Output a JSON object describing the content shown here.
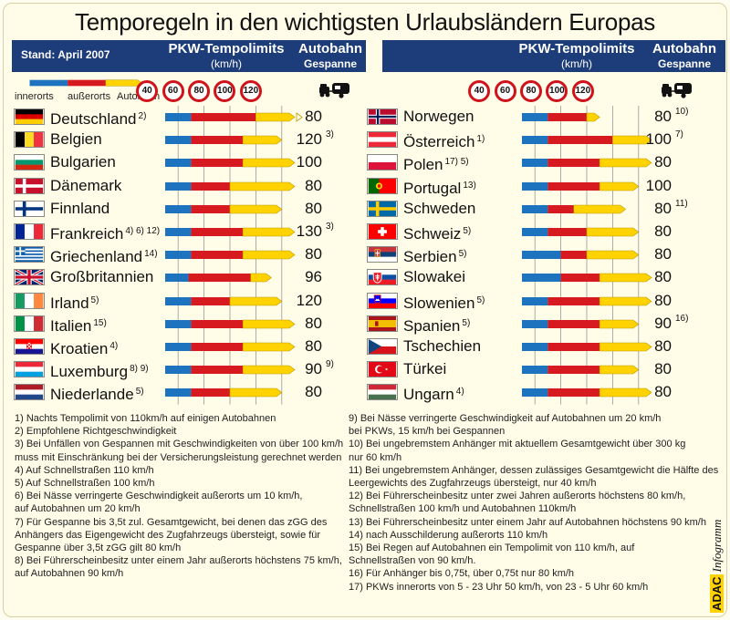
{
  "title": "Temporegeln in den wichtigsten Urlaubsländern Europas",
  "header": {
    "stand": "Stand: April 2007",
    "pkw_title": "PKW-Tempolimits",
    "pkw_unit": "(km/h)",
    "autobahn_title": "Autobahn",
    "autobahn_sub": "Gespanne"
  },
  "legend": {
    "innerorts": "innerorts",
    "ausserorts": "außerorts",
    "autobahn": "Autobahn"
  },
  "speed_ticks": [
    "40",
    "60",
    "80",
    "100",
    "120"
  ],
  "colors": {
    "innerorts": "#1e73be",
    "ausserorts": "#d71920",
    "autobahn": "#ffd200",
    "header_bg": "#1c3c7a"
  },
  "chart_data": {
    "type": "bar",
    "title": "Temporegeln in den wichtigsten Urlaubsländern Europas",
    "xlabel": "PKW-Tempolimits (km/h)",
    "xlim": [
      30,
      130
    ],
    "series": [
      {
        "name": "innerorts"
      },
      {
        "name": "außerorts"
      },
      {
        "name": "Autobahn"
      }
    ],
    "countries": [
      {
        "name": "Deutschland",
        "fn": "2)",
        "innerorts": 50,
        "ausserorts": 100,
        "autobahn": 130,
        "autobahn_open": true,
        "gespanne": "80",
        "gfn": ""
      },
      {
        "name": "Belgien",
        "fn": "",
        "innerorts": 50,
        "ausserorts": 90,
        "autobahn": 120,
        "autobahn_open": false,
        "gespanne": "120",
        "gfn": "3)"
      },
      {
        "name": "Bulgarien",
        "fn": "",
        "innerorts": 50,
        "ausserorts": 90,
        "autobahn": 130,
        "autobahn_open": false,
        "gespanne": "100",
        "gfn": ""
      },
      {
        "name": "Dänemark",
        "fn": "",
        "innerorts": 50,
        "ausserorts": 80,
        "autobahn": 130,
        "autobahn_open": false,
        "gespanne": "80",
        "gfn": ""
      },
      {
        "name": "Finnland",
        "fn": "",
        "innerorts": 50,
        "ausserorts": 80,
        "autobahn": 120,
        "autobahn_open": false,
        "gespanne": "80",
        "gfn": ""
      },
      {
        "name": "Frankreich",
        "fn": "4) 6) 12)",
        "innerorts": 50,
        "ausserorts": 90,
        "autobahn": 130,
        "autobahn_open": false,
        "gespanne": "130",
        "gfn": "3)"
      },
      {
        "name": "Griechenland",
        "fn": "14)",
        "innerorts": 50,
        "ausserorts": 90,
        "autobahn": 130,
        "autobahn_open": false,
        "gespanne": "80",
        "gfn": ""
      },
      {
        "name": "Großbritannien",
        "fn": "",
        "innerorts": 48,
        "ausserorts": 96,
        "autobahn": 112,
        "autobahn_open": false,
        "gespanne": "96",
        "gfn": ""
      },
      {
        "name": "Irland",
        "fn": "5)",
        "innerorts": 50,
        "ausserorts": 80,
        "autobahn": 120,
        "autobahn_open": false,
        "gespanne": "120",
        "gfn": ""
      },
      {
        "name": "Italien",
        "fn": "15)",
        "innerorts": 50,
        "ausserorts": 90,
        "autobahn": 130,
        "autobahn_open": false,
        "gespanne": "80",
        "gfn": ""
      },
      {
        "name": "Kroatien",
        "fn": "4)",
        "innerorts": 50,
        "ausserorts": 90,
        "autobahn": 130,
        "autobahn_open": false,
        "gespanne": "80",
        "gfn": ""
      },
      {
        "name": "Luxemburg",
        "fn": "8) 9)",
        "innerorts": 50,
        "ausserorts": 90,
        "autobahn": 130,
        "autobahn_open": false,
        "gespanne": "90",
        "gfn": "9)"
      },
      {
        "name": "Niederlande",
        "fn": "5)",
        "innerorts": 50,
        "ausserorts": 80,
        "autobahn": 120,
        "autobahn_open": false,
        "gespanne": "80",
        "gfn": ""
      },
      {
        "name": "Norwegen",
        "fn": "",
        "innerorts": 50,
        "ausserorts": 80,
        "autobahn": 90,
        "autobahn_open": false,
        "gespanne": "80",
        "gfn": "10)"
      },
      {
        "name": "Österreich",
        "fn": "1)",
        "innerorts": 50,
        "ausserorts": 100,
        "autobahn": 130,
        "autobahn_open": false,
        "gespanne": "100",
        "gfn": "7)"
      },
      {
        "name": "Polen",
        "fn": "17) 5)",
        "innerorts": 50,
        "ausserorts": 90,
        "autobahn": 130,
        "autobahn_open": false,
        "gespanne": "80",
        "gfn": ""
      },
      {
        "name": "Portugal",
        "fn": "13)",
        "innerorts": 50,
        "ausserorts": 90,
        "autobahn": 120,
        "autobahn_open": false,
        "gespanne": "100",
        "gfn": ""
      },
      {
        "name": "Schweden",
        "fn": "",
        "innerorts": 50,
        "ausserorts": 70,
        "autobahn": 110,
        "autobahn_open": false,
        "gespanne": "80",
        "gfn": "11)"
      },
      {
        "name": "Schweiz",
        "fn": "5)",
        "innerorts": 50,
        "ausserorts": 80,
        "autobahn": 120,
        "autobahn_open": false,
        "gespanne": "80",
        "gfn": ""
      },
      {
        "name": "Serbien",
        "fn": "5)",
        "innerorts": 60,
        "ausserorts": 80,
        "autobahn": 120,
        "autobahn_open": false,
        "gespanne": "80",
        "gfn": ""
      },
      {
        "name": "Slowakei",
        "fn": "",
        "innerorts": 60,
        "ausserorts": 90,
        "autobahn": 130,
        "autobahn_open": false,
        "gespanne": "80",
        "gfn": ""
      },
      {
        "name": "Slowenien",
        "fn": "5)",
        "innerorts": 50,
        "ausserorts": 90,
        "autobahn": 130,
        "autobahn_open": false,
        "gespanne": "80",
        "gfn": ""
      },
      {
        "name": "Spanien",
        "fn": "5)",
        "innerorts": 50,
        "ausserorts": 90,
        "autobahn": 120,
        "autobahn_open": false,
        "gespanne": "90",
        "gfn": "16)"
      },
      {
        "name": "Tschechien",
        "fn": "",
        "innerorts": 50,
        "ausserorts": 90,
        "autobahn": 130,
        "autobahn_open": false,
        "gespanne": "80",
        "gfn": ""
      },
      {
        "name": "Türkei",
        "fn": "",
        "innerorts": 50,
        "ausserorts": 90,
        "autobahn": 120,
        "autobahn_open": false,
        "gespanne": "80",
        "gfn": ""
      },
      {
        "name": "Ungarn",
        "fn": "4)",
        "innerorts": 50,
        "ausserorts": 90,
        "autobahn": 130,
        "autobahn_open": false,
        "gespanne": "80",
        "gfn": ""
      }
    ]
  },
  "footnotes_left": [
    "1) Nachts Tempolimit von 110km/h auf einigen Autobahnen",
    "2) Empfohlene Richtgeschwindigkeit",
    "3) Bei Unfällen von Gespannen mit Geschwindigkeiten von über 100 km/h",
    "    muss mit Einschränkung bei der Versicherungsleistung gerechnet werden",
    "4) Auf Schnellstraßen 110 km/h",
    "5) Auf Schnellstraßen 100 km/h",
    "6) Bei Nässe verringerte Geschwindigkeit außerorts um 10 km/h,",
    "    auf Autobahnen um 20 km/h",
    "7) Für Gespanne bis 3,5t zul. Gesamtgewicht,  bei denen das zGG des",
    "    Anhängers das Eigengewicht des Zugfahrzeugs übersteigt, sowie für",
    "    Gespanne über 3,5t zGG gilt 80 km/h",
    "8) Bei Führerscheinbesitz unter einem Jahr außerorts höchstens 75 km/h,",
    "    auf Autobahnen 90 km/h"
  ],
  "footnotes_right": [
    "9) Bei Nässe verringerte Geschwindigkeit auf Autobahnen um 20 km/h",
    "    bei PKWs, 15 km/h bei Gespannen",
    "10) Bei ungebremstem Anhänger mit aktuellem Gesamtgewicht über 300 kg",
    "    nur 60 km/h",
    "11) Bei ungebremstem Anhänger, dessen zulässiges Gesamtgewicht die Hälfte des",
    "    Leergewichts des Zugfahrzeugs übersteigt, nur 40 km/h",
    "12) Bei Führerscheinbesitz unter zwei Jahren außerorts höchstens 80 km/h,",
    "    Schnellstraßen 100 km/h und Autobahnen 110km/h",
    "13) Bei Führerscheinbesitz unter einem Jahr auf Autobahnen höchstens 90 km/h",
    "14) nach Ausschilderung außerorts 110 km/h",
    "15) Bei Regen auf Autobahnen ein Tempolimit von 110 km/h, auf",
    "    Schnellstraßen von 90 km/h.",
    "16) Für Anhänger bis 0,75t, über 0,75t nur 80 km/h",
    "17) PKWs innerorts von 5 - 23 Uhr 50 km/h, von 23 - 5 Uhr 60 km/h"
  ],
  "credit": {
    "brand": "ADAC",
    "word": "Infogramm"
  }
}
